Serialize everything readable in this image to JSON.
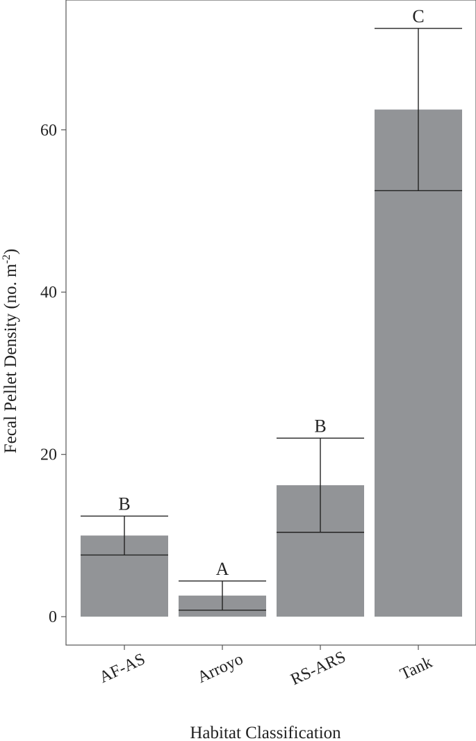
{
  "chart_data": {
    "type": "bar",
    "title": "",
    "xlabel": "Habitat Classification",
    "ylabel_main": "Fecal Pellet Density (no. m",
    "ylabel_sup": "-2",
    "ylabel_end": ")",
    "ylim": [
      -3.5,
      76
    ],
    "yticks": [
      0,
      20,
      40,
      60
    ],
    "ytick_labels": [
      "0",
      "20",
      "40",
      "60"
    ],
    "categories": [
      "AF-AS",
      "Arroyo",
      "RS-ARS",
      "Tank"
    ],
    "values": [
      10.0,
      2.6,
      16.2,
      62.5
    ],
    "error_lower": [
      7.6,
      0.8,
      10.4,
      52.5
    ],
    "error_upper": [
      12.4,
      4.4,
      22.0,
      72.5
    ],
    "group_letters": [
      "B",
      "A",
      "B",
      "C"
    ],
    "bar_color": "#929497",
    "line_color": "#222222",
    "grid": false,
    "legend": "none"
  }
}
